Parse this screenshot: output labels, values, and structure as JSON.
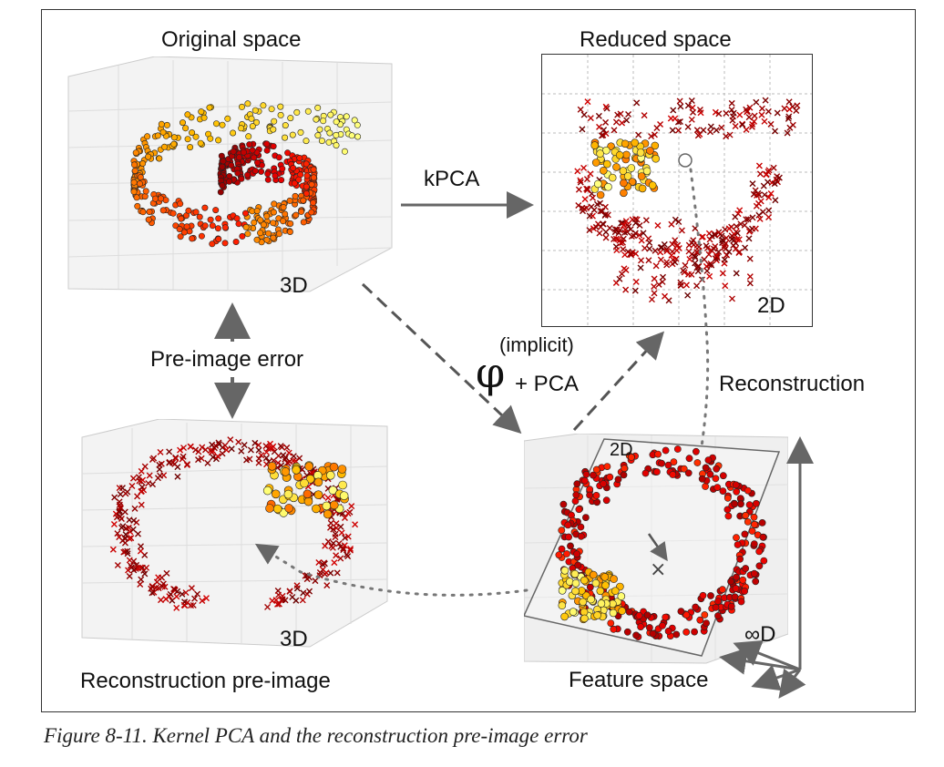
{
  "labels": {
    "original_space": "Original space",
    "reduced_space": "Reduced space",
    "kpca": "kPCA",
    "dim_3d_top": "3D",
    "dim_2d_reduced": "2D",
    "pre_image_error": "Pre-image error",
    "implicit": "(implicit)",
    "phi": "φ",
    "plus_pca": "+ PCA",
    "reconstruction": "Reconstruction",
    "dim_2d_feature": "2D",
    "dim_3d_bottom": "3D",
    "reconstruction_pre_image": "Reconstruction pre-image",
    "infinity_d": "∞D",
    "feature_space": "Feature space"
  },
  "caption": "Figure 8-11. Kernel PCA and the reconstruction pre-image error",
  "colors": {
    "arrow": "#666666",
    "pane": "#f2f2f2",
    "grid": "#d8d8d8",
    "dotted": "#777777"
  }
}
